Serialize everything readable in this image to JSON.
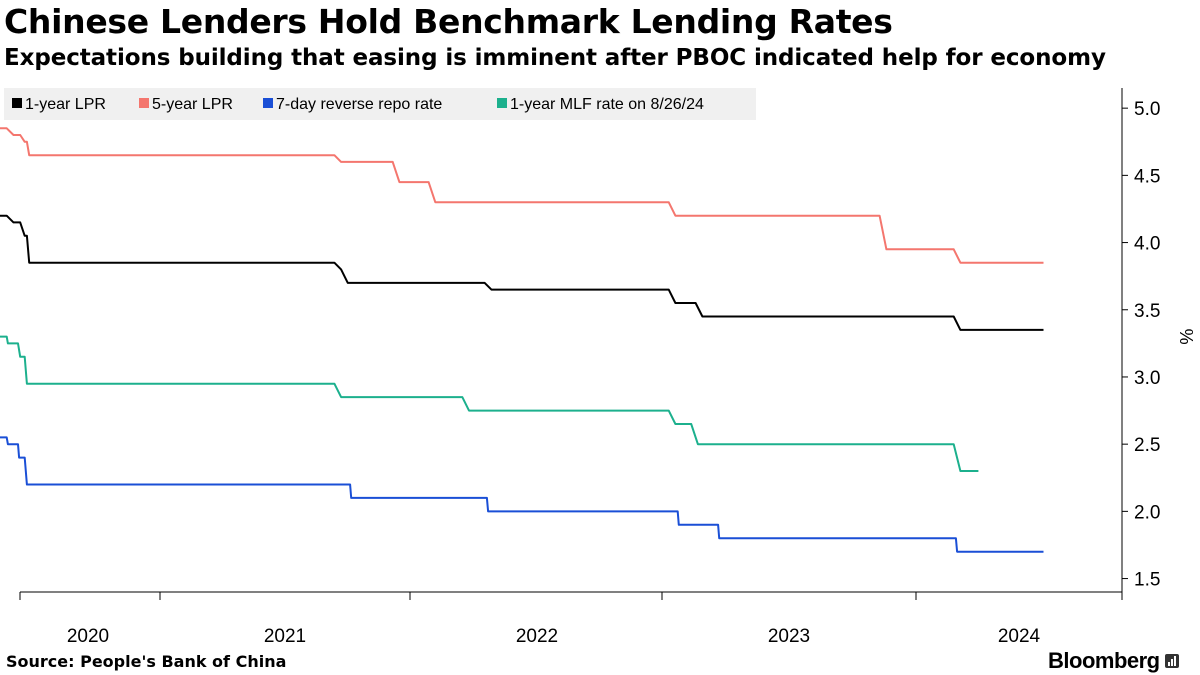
{
  "title": "Chinese Lenders Hold Benchmark Lending Rates",
  "subtitle": "Expectations building that easing is imminent after PBOC indicated help for economy",
  "source": "Source:  People's Bank of China",
  "brand": "Bloomberg",
  "chart_data": {
    "type": "line",
    "ylabel": "%",
    "ylim": [
      1.4,
      5.15
    ],
    "yticks": [
      "5.0",
      "4.5",
      "4.0",
      "3.5",
      "3.0",
      "2.5",
      "2.0",
      "1.5"
    ],
    "xlim": [
      2019.7,
      2024.7
    ],
    "xticks": [
      {
        "label": "2020",
        "x": 2020.0
      },
      {
        "label": "2021",
        "x": 2021.0
      },
      {
        "label": "2022",
        "x": 2022.0
      },
      {
        "label": "2023",
        "x": 2023.0
      },
      {
        "label": "2024",
        "x": 2024.0
      }
    ],
    "legend_position": "top-left",
    "grid": false,
    "series": [
      {
        "name": "1-year LPR",
        "color": "#000000",
        "points": [
          [
            2019.7,
            4.2
          ],
          [
            2019.73,
            4.2
          ],
          [
            2019.76,
            4.15
          ],
          [
            2019.79,
            4.15
          ],
          [
            2019.81,
            4.05
          ],
          [
            2019.82,
            4.05
          ],
          [
            2019.83,
            3.85
          ],
          [
            2021.19,
            3.85
          ],
          [
            2021.22,
            3.8
          ],
          [
            2021.25,
            3.7
          ],
          [
            2021.86,
            3.7
          ],
          [
            2021.89,
            3.65
          ],
          [
            2022.68,
            3.65
          ],
          [
            2022.71,
            3.55
          ],
          [
            2022.8,
            3.55
          ],
          [
            2022.83,
            3.45
          ],
          [
            2023.95,
            3.45
          ],
          [
            2023.98,
            3.35
          ],
          [
            2024.35,
            3.35
          ]
        ]
      },
      {
        "name": "5-year LPR",
        "color": "#f4766e",
        "points": [
          [
            2019.7,
            4.85
          ],
          [
            2019.73,
            4.85
          ],
          [
            2019.76,
            4.8
          ],
          [
            2019.79,
            4.8
          ],
          [
            2019.81,
            4.75
          ],
          [
            2019.82,
            4.75
          ],
          [
            2019.83,
            4.65
          ],
          [
            2021.19,
            4.65
          ],
          [
            2021.22,
            4.6
          ],
          [
            2021.45,
            4.6
          ],
          [
            2021.48,
            4.45
          ],
          [
            2021.61,
            4.45
          ],
          [
            2021.64,
            4.3
          ],
          [
            2022.68,
            4.3
          ],
          [
            2022.71,
            4.2
          ],
          [
            2023.62,
            4.2
          ],
          [
            2023.65,
            3.95
          ],
          [
            2023.95,
            3.95
          ],
          [
            2023.98,
            3.85
          ],
          [
            2024.35,
            3.85
          ]
        ]
      },
      {
        "name": "7-day reverse repo rate",
        "color": "#1a4fd6",
        "points": [
          [
            2019.7,
            2.55
          ],
          [
            2019.73,
            2.55
          ],
          [
            2019.735,
            2.5
          ],
          [
            2019.78,
            2.5
          ],
          [
            2019.785,
            2.4
          ],
          [
            2019.81,
            2.4
          ],
          [
            2019.82,
            2.2
          ],
          [
            2021.26,
            2.2
          ],
          [
            2021.265,
            2.1
          ],
          [
            2021.87,
            2.1
          ],
          [
            2021.875,
            2.0
          ],
          [
            2022.72,
            2.0
          ],
          [
            2022.725,
            1.9
          ],
          [
            2022.9,
            1.9
          ],
          [
            2022.905,
            1.8
          ],
          [
            2023.96,
            1.8
          ],
          [
            2023.965,
            1.7
          ],
          [
            2024.35,
            1.7
          ]
        ]
      },
      {
        "name": "1-year MLF rate on 8/26/24",
        "color": "#1cb08d",
        "points": [
          [
            2019.7,
            3.3
          ],
          [
            2019.73,
            3.3
          ],
          [
            2019.735,
            3.25
          ],
          [
            2019.78,
            3.25
          ],
          [
            2019.79,
            3.15
          ],
          [
            2019.81,
            3.15
          ],
          [
            2019.82,
            2.95
          ],
          [
            2021.19,
            2.95
          ],
          [
            2021.22,
            2.85
          ],
          [
            2021.76,
            2.85
          ],
          [
            2021.79,
            2.75
          ],
          [
            2022.68,
            2.75
          ],
          [
            2022.71,
            2.65
          ],
          [
            2022.78,
            2.65
          ],
          [
            2022.81,
            2.5
          ],
          [
            2023.95,
            2.5
          ],
          [
            2023.98,
            2.3
          ],
          [
            2024.06,
            2.3
          ]
        ]
      }
    ]
  }
}
